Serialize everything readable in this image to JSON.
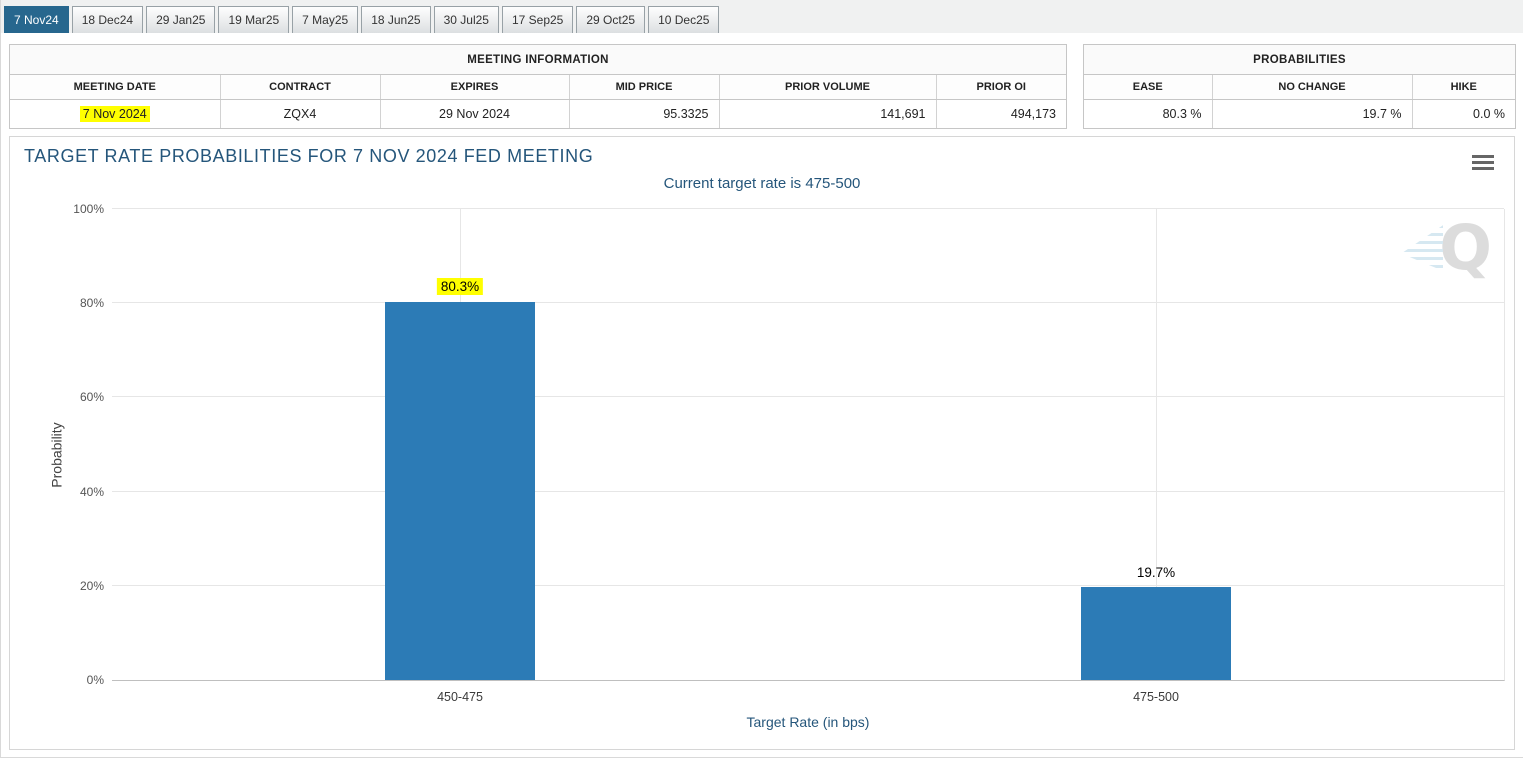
{
  "tabs": [
    {
      "label": "7 Nov24",
      "active": true
    },
    {
      "label": "18 Dec24",
      "active": false
    },
    {
      "label": "29 Jan25",
      "active": false
    },
    {
      "label": "19 Mar25",
      "active": false
    },
    {
      "label": "7 May25",
      "active": false
    },
    {
      "label": "18 Jun25",
      "active": false
    },
    {
      "label": "30 Jul25",
      "active": false
    },
    {
      "label": "17 Sep25",
      "active": false
    },
    {
      "label": "29 Oct25",
      "active": false
    },
    {
      "label": "10 Dec25",
      "active": false
    }
  ],
  "meeting_info": {
    "title": "MEETING INFORMATION",
    "columns": [
      "MEETING DATE",
      "CONTRACT",
      "EXPIRES",
      "MID PRICE",
      "PRIOR VOLUME",
      "PRIOR OI"
    ],
    "values": {
      "meeting_date": "7 Nov 2024",
      "contract": "ZQX4",
      "expires": "29 Nov 2024",
      "mid_price": "95.3325",
      "prior_volume": "141,691",
      "prior_oi": "494,173"
    }
  },
  "probabilities": {
    "title": "PROBABILITIES",
    "columns": [
      "EASE",
      "NO CHANGE",
      "HIKE"
    ],
    "values": {
      "ease": "80.3 %",
      "no_change": "19.7 %",
      "hike": "0.0 %"
    }
  },
  "chart_data": {
    "type": "bar",
    "title": "TARGET RATE PROBABILITIES FOR 7 NOV 2024 FED MEETING",
    "subtitle": "Current target rate is 475-500",
    "categories": [
      "450-475",
      "475-500"
    ],
    "values": [
      80.3,
      19.7
    ],
    "value_labels": [
      "80.3%",
      "19.7%"
    ],
    "highlighted_label_index": 0,
    "xlabel": "Target Rate (in bps)",
    "ylabel": "Probability",
    "ylim": [
      0,
      100
    ],
    "ytick_labels": [
      "0%",
      "20%",
      "40%",
      "60%",
      "80%",
      "100%"
    ],
    "grid": true,
    "legend": false,
    "bar_color": "#2c7bb6",
    "highlight_color": "#ffff00",
    "watermark_letter": "Q"
  }
}
